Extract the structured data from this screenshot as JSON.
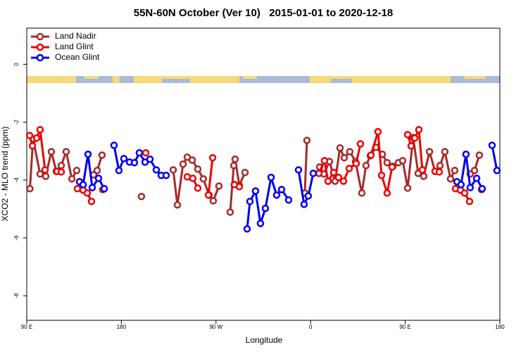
{
  "chart_data": {
    "type": "line",
    "title": "55N-60N October (Ver 10)   2015-01-01 to 2020-12-18",
    "x_label": "Longitude",
    "y_label": "XCO2 - MLO trend (ppm)",
    "xlim": [
      90,
      540
    ],
    "ylim": [
      -8.85,
      1.25
    ],
    "xticks": [
      {
        "value": 90,
        "label": "90 E"
      },
      {
        "value": 180,
        "label": "180"
      },
      {
        "value": 270,
        "label": "90 W"
      },
      {
        "value": 360,
        "label": "0"
      },
      {
        "value": 450,
        "label": "90 E"
      },
      {
        "value": 540,
        "label": "180"
      }
    ],
    "yticks": [
      0,
      -2,
      -4,
      -6,
      -8
    ],
    "legend": "top-left",
    "series": [
      {
        "name": "Land Nadir",
        "color": "#a52a2a",
        "x": [
          93,
          96,
          102.7,
          108,
          113.4,
          118.1,
          122.8,
          127.5,
          132.9,
          137.5,
          null,
          153.6,
          157,
          161.6,
          null,
          199.1,
          null,
          229.3,
          233.3,
          238.7,
          242.7,
          247.4,
          252.7,
          258,
          263.4,
          267.4,
          272.8,
          null,
          283.5,
          286.9,
          288.2,
          292.2,
          297.6,
          null,
          356.5,
          354.5,
          null,
          368.6,
          372.6,
          377.9,
          383.3,
          388,
          392,
          397.3,
          402.7,
          408.7,
          412.7,
          416.8,
          422.1,
          428.2,
          432.8,
          438.2,
          443.5,
          447.6,
          452.3,
          457.6,
          462.3,
          467.6,
          473.1,
          478.4,
          483.1,
          487.7,
          493.1,
          497.1,
          null,
          511.8,
          515.9,
          520.5
        ],
        "values": [
          -4.3,
          -2.58,
          -3.79,
          -3.87,
          -3.02,
          -3.7,
          -3.5,
          -3.02,
          -3.96,
          -3.67,
          null,
          -3.82,
          -3.67,
          -3.14,
          null,
          -4.57,
          null,
          -3.65,
          -4.86,
          -3.45,
          -3.21,
          -3.31,
          -3.62,
          -3.96,
          -4.52,
          -4.72,
          -4.21,
          null,
          -5.11,
          -3.5,
          -3.28,
          -4.18,
          -3.74,
          null,
          -2.63,
          -4.45,
          null,
          -3.55,
          -3.79,
          -3.36,
          -4.04,
          -2.89,
          -3.23,
          -3.02,
          -3.36,
          -4.45,
          -3.5,
          -3.16,
          -2.87,
          -3.11,
          -3.4,
          -3.53,
          -3.4,
          -3.33,
          -4.28,
          -2.53,
          -3.77,
          -3.87,
          -3.02,
          -3.7,
          -3.5,
          -3.02,
          -3.96,
          -3.67,
          null,
          -3.79,
          -3.67,
          -3.14
        ]
      },
      {
        "name": "Land Glint",
        "color": "#ee0000",
        "x": [
          92.7,
          95.4,
          99.4,
          102.7,
          107.4,
          null,
          118.8,
          122.8,
          null,
          138.2,
          143.6,
          147.6,
          151.6,
          null,
          162.3,
          null,
          203.2,
          null,
          242.7,
          248,
          252.7,
          null,
          262.8,
          266.8,
          null,
          287.5,
          292.2,
          null,
          367.9,
          373.2,
          376.6,
          381.9,
          386.6,
          391.3,
          396.7,
          403.4,
          407.4,
          null,
          417.4,
          424.1,
          427.5,
          432.8,
          437.5,
          null,
          452.3,
          455.6,
          459,
          463,
          466.3,
          null,
          478.4,
          482.4,
          null,
          497.8,
          502.5,
          506.5,
          511.2,
          null,
          522.6
        ],
        "values": [
          -2.46,
          -2.82,
          -2.55,
          -2.26,
          -3.65,
          null,
          -3.7,
          -3.72,
          null,
          -4.3,
          -4.35,
          -4.45,
          -4.74,
          null,
          -4.33,
          null,
          -3.06,
          null,
          -3.89,
          -3.94,
          -4.28,
          null,
          -4.52,
          -3.23,
          null,
          -4.16,
          -4.23,
          null,
          -3.77,
          -3.33,
          -4.04,
          -3.74,
          -3.91,
          -4.04,
          -3.6,
          -3.43,
          -2.75,
          null,
          -3.14,
          -2.33,
          -3.84,
          -4.45,
          -3.55,
          null,
          -2.43,
          -2.82,
          -2.55,
          -2.26,
          -3.65,
          null,
          -3.7,
          -3.72,
          null,
          -4.3,
          -4.35,
          -4.45,
          -4.74,
          null,
          -4.33
        ]
      },
      {
        "name": "Ocean Glint",
        "color": "#0000ee",
        "x": [
          140.2,
          143.6,
          148.3,
          152.3,
          158.3,
          163.7,
          null,
          173,
          177.7,
          182.4,
          187.8,
          192.4,
          197.1,
          202.5,
          207.2,
          213.2,
          217.9,
          222.6,
          null,
          299.6,
          302.3,
          307.6,
          312.3,
          317,
          322.4,
          327.7,
          332.4,
          339.1,
          null,
          348.5,
          353.8,
          357.8,
          362.5,
          null,
          499.2,
          503.1,
          507.8,
          511.8,
          517.9,
          523.2,
          null,
          532.6,
          537.3
        ],
        "values": [
          -4.06,
          -4.16,
          -3.11,
          -4.26,
          -3.94,
          -4.3,
          null,
          -2.8,
          -3.67,
          -3.26,
          -3.38,
          -3.4,
          -3.06,
          -3.38,
          -3.28,
          -3.65,
          -3.84,
          -3.84,
          null,
          -5.69,
          -4.74,
          -4.38,
          -5.5,
          -4.98,
          -3.91,
          -4.52,
          -4.33,
          -4.69,
          null,
          -3.65,
          -4.84,
          -4.55,
          -3.77,
          null,
          -4.06,
          -4.16,
          -3.11,
          -4.26,
          -3.94,
          -4.3,
          null,
          -2.8,
          -3.67
        ]
      }
    ]
  }
}
